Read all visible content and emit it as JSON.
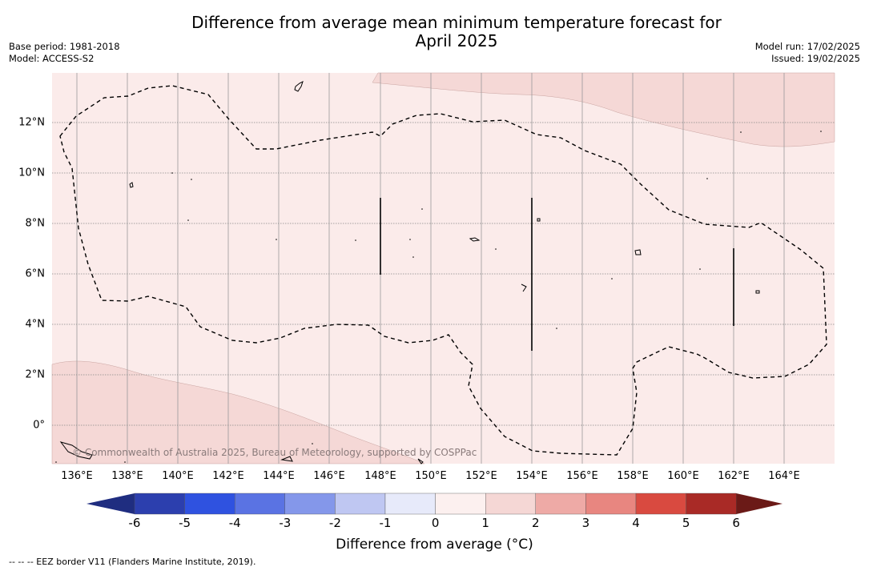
{
  "title_line1": "Difference from average mean minimum temperature forecast for",
  "title_line2": "April 2025",
  "base_period": "Base period: 1981-2018",
  "model": "Model: ACCESS-S2",
  "model_run": "Model run: 17/02/2025",
  "issued": "Issued: 19/02/2025",
  "copyright": "© Commonwealth of Australia 2025, Bureau of Meteorology, supported by COSPPac",
  "footer": "--  --  -- EEZ border V11 (Flanders Marine Institute, 2019).",
  "colorbar_label": "Difference from average (°C)",
  "x_ticks": [
    "136°E",
    "138°E",
    "140°E",
    "142°E",
    "144°E",
    "146°E",
    "148°E",
    "150°E",
    "152°E",
    "154°E",
    "156°E",
    "158°E",
    "160°E",
    "162°E",
    "164°E"
  ],
  "y_ticks": [
    "12°N",
    "10°N",
    "8°N",
    "6°N",
    "4°N",
    "2°N",
    "0°"
  ],
  "colorbar_ticks": [
    "-6",
    "-5",
    "-4",
    "-3",
    "-2",
    "-1",
    "0",
    "1",
    "2",
    "3",
    "4",
    "5",
    "6"
  ],
  "colorbar_colors": [
    "#2c3fae",
    "#2f52e0",
    "#5a73e3",
    "#8497ea",
    "#bfc7f2",
    "#e7eafa",
    "#fcf0ef",
    "#f5d7d5",
    "#eeaaa6",
    "#e88680",
    "#d94a40",
    "#a92a26"
  ],
  "colorbar_under": "#1f2d80",
  "colorbar_over": "#6b1a17",
  "map_colors": {
    "base": "#fbebea",
    "light": "#f5d8d6",
    "grid": "#999999"
  }
}
